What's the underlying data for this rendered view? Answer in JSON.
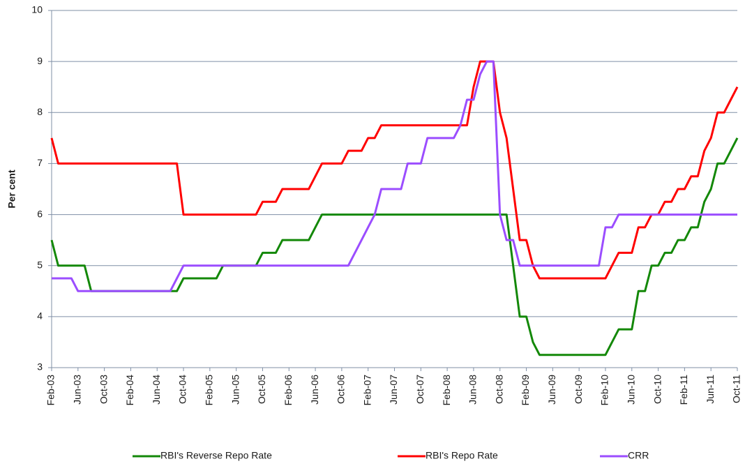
{
  "chart_data": {
    "type": "line",
    "y_label": "Per cent",
    "categories": [
      "Feb-03",
      null,
      null,
      null,
      "Jun-03",
      null,
      null,
      null,
      "Oct-03",
      null,
      null,
      null,
      "Feb-04",
      null,
      null,
      null,
      "Jun-04",
      null,
      null,
      null,
      "Oct-04",
      null,
      null,
      null,
      "Feb-05",
      null,
      null,
      null,
      "Jun-05",
      null,
      null,
      null,
      "Oct-05",
      null,
      null,
      null,
      "Feb-06",
      null,
      null,
      null,
      "Jun-06",
      null,
      null,
      null,
      "Oct-06",
      null,
      null,
      null,
      "Feb-07",
      null,
      null,
      null,
      "Jun-07",
      null,
      null,
      null,
      "Oct-07",
      null,
      null,
      null,
      "Feb-08",
      null,
      null,
      null,
      "Jun-08",
      null,
      null,
      null,
      "Oct-08",
      null,
      null,
      null,
      "Feb-09",
      null,
      null,
      null,
      "Jun-09",
      null,
      null,
      null,
      "Oct-09",
      null,
      null,
      null,
      "Feb-10",
      null,
      null,
      null,
      "Jun-10",
      null,
      null,
      null,
      "Oct-10",
      null,
      null,
      null,
      "Feb-11",
      null,
      null,
      null,
      "Jun-11",
      null,
      null,
      null,
      "Oct-11"
    ],
    "series": [
      {
        "name": "RBI's Reverse Repo Rate",
        "color": "#138808",
        "values": [
          5.5,
          5,
          5,
          5,
          5,
          5,
          4.5,
          4.5,
          4.5,
          4.5,
          4.5,
          4.5,
          4.5,
          4.5,
          4.5,
          4.5,
          4.5,
          4.5,
          4.5,
          4.5,
          4.75,
          4.75,
          4.75,
          4.75,
          4.75,
          4.75,
          5,
          5,
          5,
          5,
          5,
          5,
          5.25,
          5.25,
          5.25,
          5.5,
          5.5,
          5.5,
          5.5,
          5.5,
          5.75,
          6,
          6,
          6,
          6,
          6,
          6,
          6,
          6,
          6,
          6,
          6,
          6,
          6,
          6,
          6,
          6,
          6,
          6,
          6,
          6,
          6,
          6,
          6,
          6,
          6,
          6,
          6,
          6,
          6,
          5,
          4,
          4,
          3.5,
          3.25,
          3.25,
          3.25,
          3.25,
          3.25,
          3.25,
          3.25,
          3.25,
          3.25,
          3.25,
          3.25,
          3.5,
          3.75,
          3.75,
          3.75,
          4.5,
          4.5,
          5,
          5,
          5.25,
          5.25,
          5.5,
          5.5,
          5.75,
          5.75,
          6.25,
          6.5,
          7,
          7,
          7.25,
          7.5
        ]
      },
      {
        "name": "RBI's Repo Rate",
        "color": "#ff0000",
        "values": [
          7.5,
          7,
          7,
          7,
          7,
          7,
          7,
          7,
          7,
          7,
          7,
          7,
          7,
          7,
          7,
          7,
          7,
          7,
          7,
          7,
          6,
          6,
          6,
          6,
          6,
          6,
          6,
          6,
          6,
          6,
          6,
          6,
          6.25,
          6.25,
          6.25,
          6.5,
          6.5,
          6.5,
          6.5,
          6.5,
          6.75,
          7,
          7,
          7,
          7,
          7.25,
          7.25,
          7.25,
          7.5,
          7.5,
          7.75,
          7.75,
          7.75,
          7.75,
          7.75,
          7.75,
          7.75,
          7.75,
          7.75,
          7.75,
          7.75,
          7.75,
          7.75,
          7.75,
          8.5,
          9,
          9,
          9,
          8,
          7.5,
          6.5,
          5.5,
          5.5,
          5,
          4.75,
          4.75,
          4.75,
          4.75,
          4.75,
          4.75,
          4.75,
          4.75,
          4.75,
          4.75,
          4.75,
          5,
          5.25,
          5.25,
          5.25,
          5.75,
          5.75,
          6,
          6,
          6.25,
          6.25,
          6.5,
          6.5,
          6.75,
          6.75,
          7.25,
          7.5,
          8,
          8,
          8.25,
          8.5
        ]
      },
      {
        "name": "CRR",
        "color": "#9b4dff",
        "values": [
          4.75,
          4.75,
          4.75,
          4.75,
          4.5,
          4.5,
          4.5,
          4.5,
          4.5,
          4.5,
          4.5,
          4.5,
          4.5,
          4.5,
          4.5,
          4.5,
          4.5,
          4.5,
          4.5,
          4.75,
          5,
          5,
          5,
          5,
          5,
          5,
          5,
          5,
          5,
          5,
          5,
          5,
          5,
          5,
          5,
          5,
          5,
          5,
          5,
          5,
          5,
          5,
          5,
          5,
          5,
          5,
          5.25,
          5.5,
          5.75,
          6,
          6.5,
          6.5,
          6.5,
          6.5,
          7,
          7,
          7,
          7.5,
          7.5,
          7.5,
          7.5,
          7.5,
          7.75,
          8.25,
          8.25,
          8.75,
          9,
          9,
          6,
          5.5,
          5.5,
          5,
          5,
          5,
          5,
          5,
          5,
          5,
          5,
          5,
          5,
          5,
          5,
          5,
          5.75,
          5.75,
          6,
          6,
          6,
          6,
          6,
          6,
          6,
          6,
          6,
          6,
          6,
          6,
          6,
          6,
          6,
          6,
          6,
          6,
          6
        ]
      }
    ],
    "ylim": [
      3,
      10
    ],
    "yticks": [
      3,
      4,
      5,
      6,
      7,
      8,
      9,
      10
    ],
    "grid": true,
    "legend": "bottom"
  }
}
